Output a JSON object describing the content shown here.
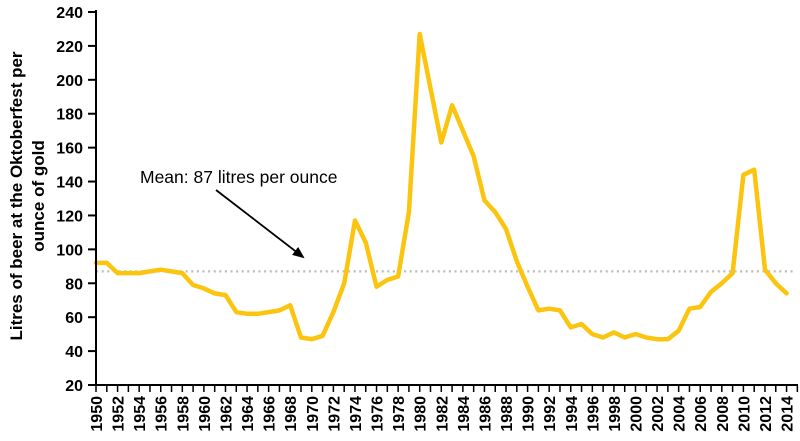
{
  "chart_data": {
    "type": "line",
    "title": "",
    "xlabel": "",
    "ylabel_lines": [
      "Litres of beer at the Oktoberfest per",
      "ounce of gold"
    ],
    "ylim": [
      20,
      240
    ],
    "ytick_step": 20,
    "yticks": [
      20,
      40,
      60,
      80,
      100,
      120,
      140,
      160,
      180,
      200,
      220,
      240
    ],
    "xtick_minor_start": 1950,
    "xtick_minor_end": 2015,
    "xtick_label_years": [
      1950,
      1952,
      1954,
      1956,
      1958,
      1960,
      1962,
      1964,
      1966,
      1968,
      1970,
      1972,
      1974,
      1976,
      1978,
      1980,
      1982,
      1984,
      1986,
      1988,
      1990,
      1992,
      1994,
      1996,
      1998,
      2000,
      2002,
      2004,
      2006,
      2008,
      2010,
      2012,
      2014
    ],
    "series_name": "Litres of beer at the Oktoberfest per ounce of gold",
    "years": [
      1950,
      1951,
      1952,
      1953,
      1954,
      1955,
      1956,
      1957,
      1958,
      1959,
      1960,
      1961,
      1962,
      1963,
      1964,
      1965,
      1966,
      1967,
      1968,
      1969,
      1970,
      1971,
      1972,
      1973,
      1974,
      1975,
      1976,
      1977,
      1978,
      1979,
      1980,
      1981,
      1982,
      1983,
      1984,
      1985,
      1986,
      1987,
      1988,
      1989,
      1990,
      1991,
      1992,
      1993,
      1994,
      1995,
      1996,
      1997,
      1998,
      1999,
      2000,
      2001,
      2002,
      2003,
      2004,
      2005,
      2006,
      2007,
      2008,
      2009,
      2010,
      2011,
      2012,
      2013,
      2014
    ],
    "values": [
      92,
      92,
      86,
      86,
      86,
      87,
      88,
      87,
      86,
      79,
      77,
      74,
      73,
      63,
      62,
      62,
      63,
      64,
      67,
      48,
      47,
      49,
      63,
      80,
      117,
      104,
      78,
      82,
      84,
      122,
      227,
      195,
      163,
      185,
      170,
      155,
      129,
      122,
      112,
      93,
      78,
      64,
      65,
      64,
      54,
      56,
      50,
      48,
      51,
      48,
      50,
      48,
      47,
      47,
      52,
      65,
      66,
      75,
      80,
      86,
      144,
      147,
      88,
      80,
      74
    ],
    "mean": {
      "value": 87,
      "label": "Mean: 87 litres per ounce"
    },
    "grid": "off",
    "legend": "none",
    "colors": {
      "line": "#FBC40F",
      "mean_line": "#BFBFBF",
      "axis": "#000000",
      "text": "#000000"
    }
  }
}
